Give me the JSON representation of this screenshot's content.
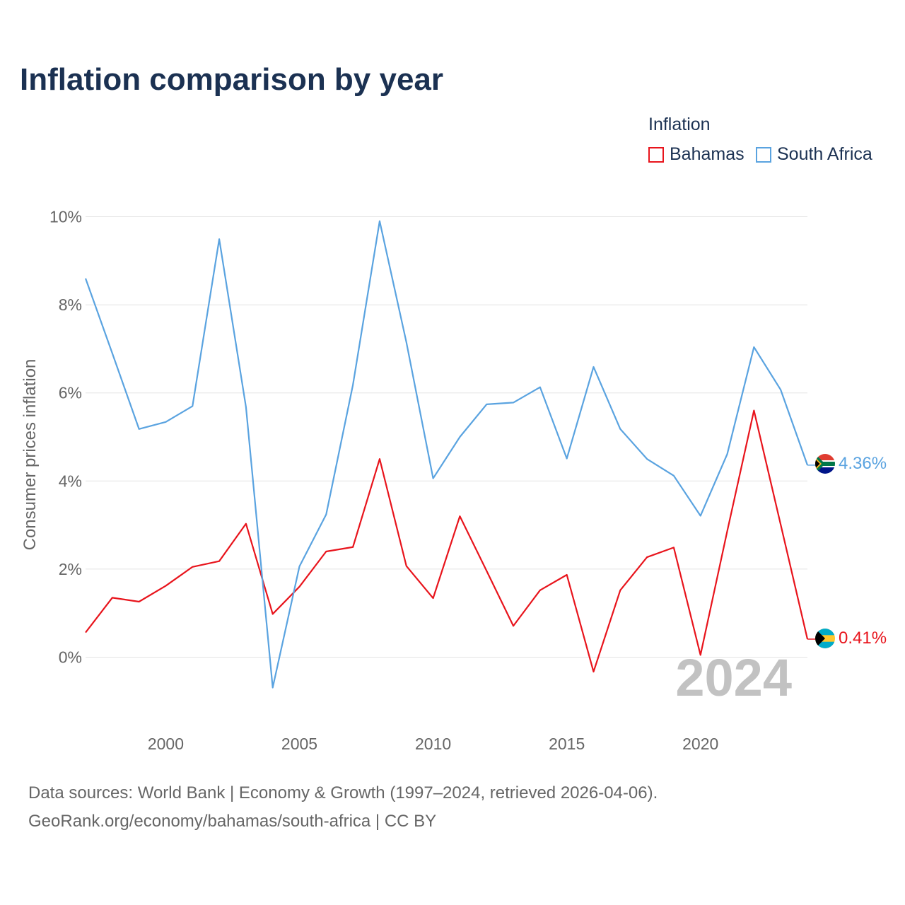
{
  "title": "Inflation comparison by year",
  "legend": {
    "title": "Inflation",
    "items": [
      {
        "name": "Bahamas",
        "color": "#e8141c"
      },
      {
        "name": "South Africa",
        "color": "#5aa3e0"
      }
    ]
  },
  "chart_data": {
    "type": "line",
    "title": "Inflation comparison by year",
    "xlabel": "",
    "ylabel": "Consumer prices inflation",
    "x": [
      1997,
      1998,
      1999,
      2000,
      2001,
      2002,
      2003,
      2004,
      2005,
      2006,
      2007,
      2008,
      2009,
      2010,
      2011,
      2012,
      2013,
      2014,
      2015,
      2016,
      2017,
      2018,
      2019,
      2020,
      2021,
      2022,
      2023,
      2024
    ],
    "xticks": [
      2000,
      2005,
      2010,
      2015,
      2020
    ],
    "xtick_labels": [
      "2000",
      "2005",
      "2010",
      "2015",
      "2020"
    ],
    "yticks": [
      0,
      2,
      4,
      6,
      8,
      10
    ],
    "ytick_labels": [
      "0%",
      "2%",
      "4%",
      "6%",
      "8%",
      "10%"
    ],
    "xlim": [
      1997,
      2024
    ],
    "ylim": [
      -0.8,
      10
    ],
    "series": [
      {
        "name": "Bahamas",
        "color": "#e8141c",
        "values": [
          0.56,
          1.35,
          1.26,
          1.62,
          2.05,
          2.18,
          3.03,
          0.98,
          1.6,
          2.4,
          2.5,
          4.5,
          2.07,
          1.34,
          3.2,
          1.96,
          0.71,
          1.52,
          1.87,
          -0.33,
          1.52,
          2.27,
          2.49,
          0.05,
          2.86,
          5.6,
          3.01,
          0.41
        ],
        "end_label": "0.41%",
        "flag": "bahamas-flag"
      },
      {
        "name": "South Africa",
        "color": "#5aa3e0",
        "values": [
          8.6,
          6.9,
          5.18,
          5.34,
          5.7,
          9.49,
          5.68,
          -0.69,
          2.06,
          3.24,
          6.18,
          9.9,
          7.15,
          4.06,
          5.0,
          5.74,
          5.78,
          6.13,
          4.51,
          6.59,
          5.18,
          4.5,
          4.12,
          3.21,
          4.61,
          7.04,
          6.07,
          4.36
        ],
        "end_label": "4.36%",
        "flag": "south-africa-flag"
      }
    ],
    "year_watermark": "2024"
  },
  "source": {
    "line1": "Data sources: World Bank | Economy & Growth (1997–2024, retrieved 2026-04-06).",
    "line2": "GeoRank.org/economy/bahamas/south-africa | CC BY"
  }
}
